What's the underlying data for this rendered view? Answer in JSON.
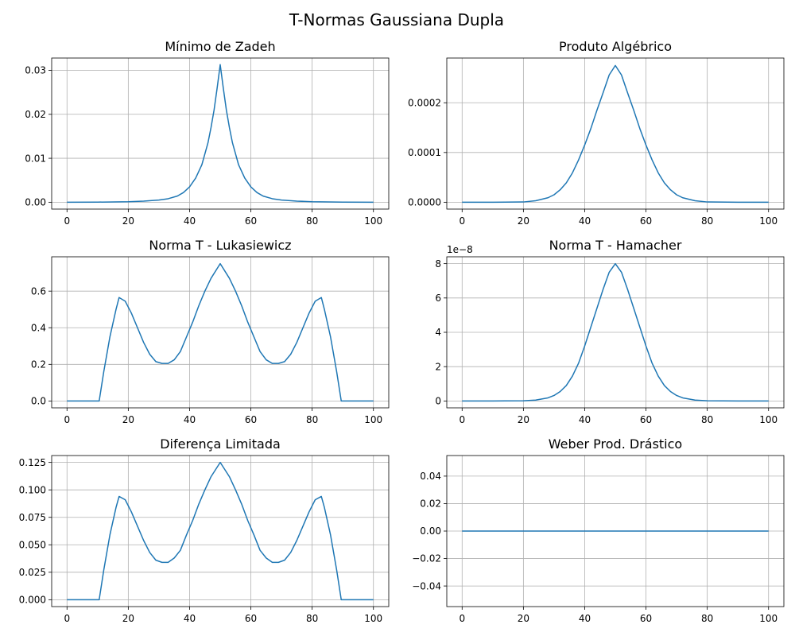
{
  "figure": {
    "suptitle": "T-Normas Gaussiana Dupla"
  },
  "chart_data": [
    {
      "type": "line",
      "title": "Mínimo de Zadeh",
      "xlim": [
        -5,
        105
      ],
      "ylim": [
        -0.00156,
        0.0328
      ],
      "xticks": [
        0,
        20,
        40,
        60,
        80,
        100
      ],
      "xtick_labels": [
        "0",
        "20",
        "40",
        "60",
        "80",
        "100"
      ],
      "yticks": [
        0,
        0.01,
        0.02,
        0.03
      ],
      "ytick_labels": [
        "0.00",
        "0.01",
        "0.02",
        "0.03"
      ],
      "offset_label": "",
      "grid": true,
      "x": [
        0,
        10,
        20,
        25,
        30,
        33,
        36,
        38,
        40,
        42,
        44,
        46,
        47,
        48,
        49,
        50,
        51,
        52,
        53,
        54,
        56,
        58,
        60,
        62,
        64,
        67,
        70,
        75,
        80,
        90,
        100
      ],
      "y": [
        0,
        2e-05,
        0.00012,
        0.00025,
        0.0005,
        0.0008,
        0.0014,
        0.0022,
        0.0035,
        0.0055,
        0.0085,
        0.0135,
        0.017,
        0.021,
        0.026,
        0.0313,
        0.026,
        0.021,
        0.017,
        0.0135,
        0.0085,
        0.0055,
        0.0035,
        0.0022,
        0.0014,
        0.0008,
        0.0005,
        0.00025,
        0.00012,
        2e-05,
        0
      ]
    },
    {
      "type": "line",
      "title": "Produto Algébrico",
      "xlim": [
        -5,
        105
      ],
      "ylim": [
        -1.38e-05,
        0.00029
      ],
      "xticks": [
        0,
        20,
        40,
        60,
        80,
        100
      ],
      "xtick_labels": [
        "0",
        "20",
        "40",
        "60",
        "80",
        "100"
      ],
      "yticks": [
        0,
        0.0001,
        0.0002
      ],
      "ytick_labels": [
        "0.0000",
        "0.0001",
        "0.0002"
      ],
      "offset_label": "",
      "grid": true,
      "x": [
        0,
        10,
        20,
        24,
        28,
        30,
        32,
        34,
        36,
        38,
        40,
        42,
        44,
        46,
        48,
        50,
        52,
        54,
        56,
        58,
        60,
        62,
        64,
        66,
        68,
        70,
        72,
        76,
        80,
        90,
        100
      ],
      "y": [
        0,
        0,
        5e-07,
        3e-06,
        9e-06,
        1.5e-05,
        2.5e-05,
        3.9e-05,
        5.9e-05,
        8.5e-05,
        0.000115,
        0.000148,
        0.000185,
        0.00022,
        0.000256,
        0.000275,
        0.000256,
        0.00022,
        0.000185,
        0.000148,
        0.000115,
        8.5e-05,
        5.9e-05,
        3.9e-05,
        2.5e-05,
        1.5e-05,
        9e-06,
        3e-06,
        5e-07,
        0,
        0
      ]
    },
    {
      "type": "line",
      "title": "Norma T - Lukasiewicz",
      "xlim": [
        -5,
        105
      ],
      "ylim": [
        -0.0375,
        0.7875
      ],
      "xticks": [
        0,
        20,
        40,
        60,
        80,
        100
      ],
      "xtick_labels": [
        "0",
        "20",
        "40",
        "60",
        "80",
        "100"
      ],
      "yticks": [
        0,
        0.2,
        0.4,
        0.6
      ],
      "ytick_labels": [
        "0.0",
        "0.2",
        "0.4",
        "0.6"
      ],
      "offset_label": "",
      "grid": true,
      "x": [
        0,
        10.5,
        12,
        14,
        16,
        17,
        19,
        21,
        23,
        25,
        27,
        29,
        31,
        33,
        35,
        37,
        39,
        41,
        43,
        45,
        47,
        50,
        53,
        55,
        57,
        59,
        61,
        63,
        65,
        67,
        69,
        71,
        73,
        75,
        77,
        79,
        81,
        83,
        84,
        86,
        88,
        89.5,
        100
      ],
      "y": [
        0,
        0,
        0.16,
        0.35,
        0.5,
        0.565,
        0.545,
        0.48,
        0.4,
        0.32,
        0.255,
        0.215,
        0.205,
        0.205,
        0.225,
        0.27,
        0.35,
        0.43,
        0.52,
        0.6,
        0.67,
        0.75,
        0.67,
        0.6,
        0.52,
        0.43,
        0.35,
        0.27,
        0.225,
        0.205,
        0.205,
        0.215,
        0.255,
        0.32,
        0.4,
        0.48,
        0.545,
        0.565,
        0.5,
        0.35,
        0.16,
        0,
        0
      ]
    },
    {
      "type": "line",
      "title": "Norma T - Hamacher",
      "xlim": [
        -5,
        105
      ],
      "ylim": [
        -0.4,
        8.4
      ],
      "xticks": [
        0,
        20,
        40,
        60,
        80,
        100
      ],
      "xtick_labels": [
        "0",
        "20",
        "40",
        "60",
        "80",
        "100"
      ],
      "yticks": [
        0,
        2,
        4,
        6,
        8
      ],
      "ytick_labels": [
        "0",
        "2",
        "4",
        "6",
        "8"
      ],
      "offset_label": "1e−8",
      "grid": true,
      "x": [
        0,
        10,
        20,
        24,
        28,
        30,
        32,
        34,
        36,
        38,
        40,
        42,
        44,
        46,
        48,
        50,
        52,
        54,
        56,
        58,
        60,
        62,
        64,
        66,
        68,
        70,
        72,
        76,
        80,
        90,
        100
      ],
      "y": [
        0,
        0,
        0.01,
        0.05,
        0.18,
        0.32,
        0.55,
        0.9,
        1.45,
        2.2,
        3.2,
        4.3,
        5.4,
        6.5,
        7.5,
        8.0,
        7.5,
        6.5,
        5.4,
        4.3,
        3.2,
        2.2,
        1.45,
        0.9,
        0.55,
        0.32,
        0.18,
        0.05,
        0.01,
        0,
        0
      ]
    },
    {
      "type": "line",
      "title": "Diferença Limitada",
      "xlim": [
        -5,
        105
      ],
      "ylim": [
        -0.00625,
        0.13125
      ],
      "xticks": [
        0,
        20,
        40,
        60,
        80,
        100
      ],
      "xtick_labels": [
        "0",
        "20",
        "40",
        "60",
        "80",
        "100"
      ],
      "yticks": [
        0,
        0.025,
        0.05,
        0.075,
        0.1,
        0.125
      ],
      "ytick_labels": [
        "0.000",
        "0.025",
        "0.050",
        "0.075",
        "0.100",
        "0.125"
      ],
      "offset_label": "",
      "grid": true,
      "x": [
        0,
        10.5,
        12,
        14,
        16,
        17,
        19,
        21,
        23,
        25,
        27,
        29,
        31,
        33,
        35,
        37,
        39,
        41,
        43,
        45,
        47,
        50,
        53,
        55,
        57,
        59,
        61,
        63,
        65,
        67,
        69,
        71,
        73,
        75,
        77,
        79,
        81,
        83,
        84,
        86,
        88,
        89.5,
        100
      ],
      "y": [
        0,
        0,
        0.027,
        0.059,
        0.084,
        0.094,
        0.091,
        0.08,
        0.067,
        0.054,
        0.043,
        0.036,
        0.034,
        0.034,
        0.038,
        0.045,
        0.059,
        0.072,
        0.087,
        0.1,
        0.112,
        0.125,
        0.112,
        0.1,
        0.087,
        0.072,
        0.059,
        0.045,
        0.038,
        0.034,
        0.034,
        0.036,
        0.043,
        0.054,
        0.067,
        0.08,
        0.091,
        0.094,
        0.084,
        0.059,
        0.027,
        0,
        0
      ]
    },
    {
      "type": "line",
      "title": "Weber Prod. Drástico",
      "xlim": [
        -5,
        105
      ],
      "ylim": [
        -0.055,
        0.055
      ],
      "xticks": [
        0,
        20,
        40,
        60,
        80,
        100
      ],
      "xtick_labels": [
        "0",
        "20",
        "40",
        "60",
        "80",
        "100"
      ],
      "yticks": [
        -0.04,
        -0.02,
        0,
        0.02,
        0.04
      ],
      "ytick_labels": [
        "−0.04",
        "−0.02",
        "0.00",
        "0.02",
        "0.04"
      ],
      "offset_label": "",
      "grid": true,
      "x": [
        0,
        100
      ],
      "y": [
        0,
        0
      ]
    }
  ]
}
